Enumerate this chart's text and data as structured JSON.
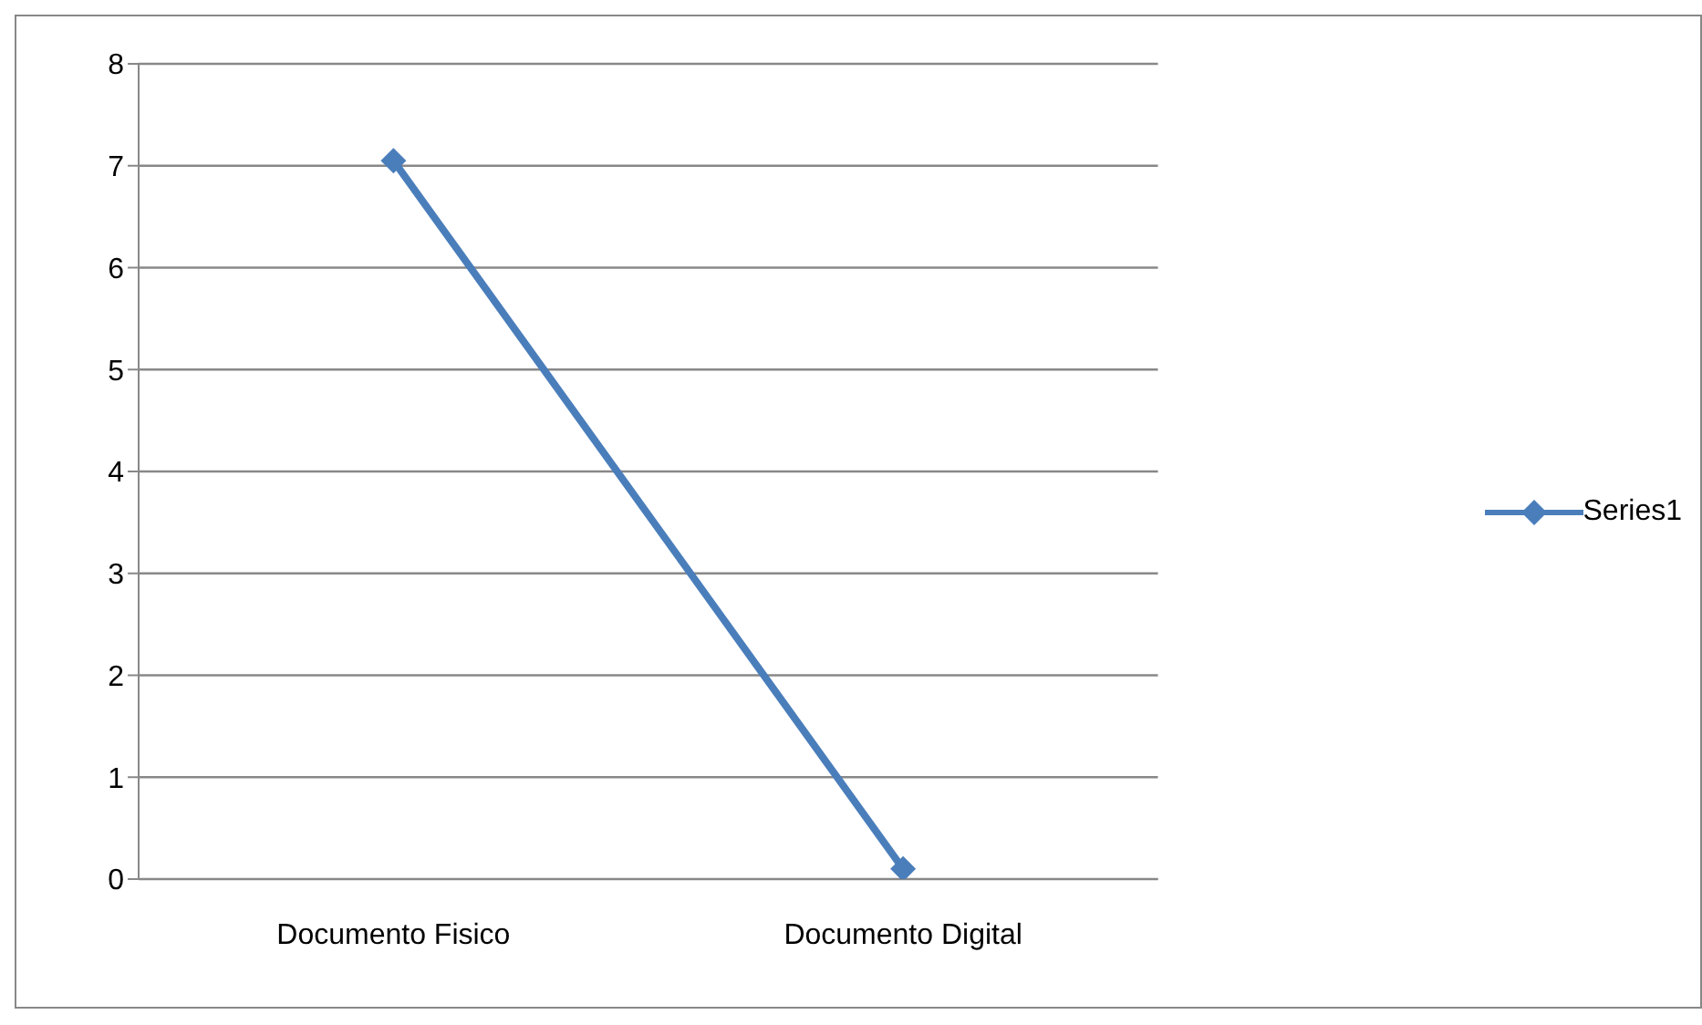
{
  "chart_data": {
    "type": "line",
    "categories": [
      "Documento Fisico",
      "Documento Digital"
    ],
    "series": [
      {
        "name": "Series1",
        "color": "#4a7ebb",
        "values": [
          7.05,
          0.1
        ]
      }
    ],
    "ylim": [
      0,
      8
    ],
    "yticks": [
      0,
      1,
      2,
      3,
      4,
      5,
      6,
      7,
      8
    ],
    "grid": "y",
    "legend": "right",
    "marker": "diamond"
  }
}
